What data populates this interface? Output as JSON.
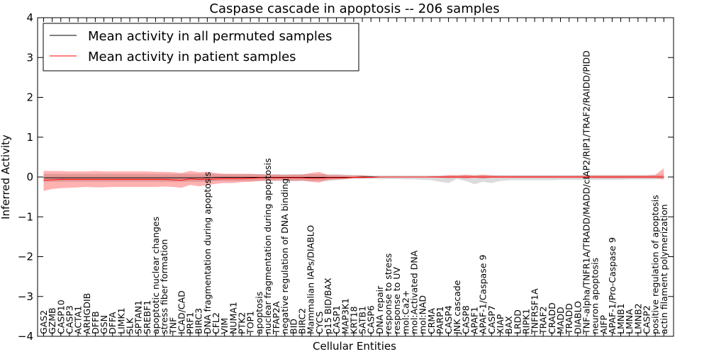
{
  "chart_data": {
    "type": "line",
    "title": "Caspase cascade in apoptosis -- 206 samples",
    "xlabel": "Cellular Entities",
    "ylabel": "Inferred Activity",
    "ylim": [
      -4,
      4
    ],
    "yticks": [
      "−4",
      "−3",
      "−2",
      "−1",
      "0",
      "1",
      "2",
      "3",
      "4"
    ],
    "legend_position": "top-left",
    "categories": [
      "GAS2",
      "GZMB",
      "CASP10",
      "CASP3",
      "ACTA1",
      "ARHGDIB",
      "DFFB",
      "GSN",
      "DFFA",
      "LIMK1",
      "SLK",
      "SPTAN1",
      "SREBF1",
      "apoptotic nuclear changes",
      "stress fiber formation",
      "TNF",
      "ICAD/CAD",
      "PRF1",
      "BIRC3",
      "DNA fragmentation during apoptosis",
      "CFL2",
      "VIM",
      "NUMA1",
      "PTK2",
      "TOP1",
      "apoptosis",
      "nuclear fragmentation during apoptosis",
      "TFAP2A",
      "negative regulation of DNA binding",
      "BID",
      "BIRC2",
      "Mammalian IAPs/DIABLO",
      "CYCS",
      "p15 BID/BAX",
      "CASP1",
      "MAP3K1",
      "KRT18",
      "SATB1",
      "CASP6",
      "DNA repair",
      "response to stress",
      "response to UV",
      "mol:Ca2+",
      "mol:Activated DNA",
      "mol:NAD",
      "CRMA",
      "PARP1",
      "CASP4",
      "JNK cascade",
      "CASP8",
      "APAF1",
      "APAF-1/Caspase 9",
      "CASP7",
      "XIAP",
      "BAX",
      "LRDD",
      "RIPK1",
      "TNFRSF1A",
      "TRAF2",
      "CRADD",
      "MADD",
      "TRADD",
      "DIABLO",
      "TNF-alpha/TNFR1A/TRADD/MADD/cIAP2/RIP1/TRAF2/RAIDD/PIDD",
      "neuron apoptosis",
      "AIFP",
      "APAF-1/Pro-Caspase 9",
      "LMNB1",
      "LMNA",
      "LMNB2",
      "CASP2",
      "positive regulation of apoptosis",
      "actin filament polymerization"
    ],
    "series": [
      {
        "name": "Mean activity in all permuted samples",
        "color": "#000000",
        "values": [
          -0.02,
          -0.02,
          -0.02,
          -0.02,
          -0.02,
          -0.02,
          -0.02,
          -0.02,
          -0.02,
          -0.02,
          -0.02,
          -0.02,
          -0.02,
          -0.02,
          -0.02,
          -0.02,
          -0.02,
          -0.02,
          -0.02,
          -0.02,
          -0.01,
          -0.01,
          -0.01,
          -0.01,
          -0.01,
          -0.01,
          -0.01,
          -0.01,
          -0.01,
          -0.01,
          -0.01,
          -0.01,
          -0.01,
          -0.01,
          -0.01,
          -0.01,
          -0.01,
          0,
          0,
          0,
          0,
          0,
          0,
          0,
          0,
          0,
          0,
          0,
          0,
          0,
          0,
          0,
          0,
          0,
          0,
          0,
          0,
          0,
          0,
          0,
          0,
          0,
          0,
          0,
          0,
          0,
          0,
          0,
          0,
          0,
          0,
          0,
          0
        ],
        "band_upper": [
          0.08,
          0.08,
          0.08,
          0.08,
          0.08,
          0.08,
          0.08,
          0.08,
          0.08,
          0.08,
          0.08,
          0.08,
          0.08,
          0.08,
          0.08,
          0.08,
          0.08,
          0.08,
          0.08,
          0.08,
          0.07,
          0.07,
          0.07,
          0.07,
          0.07,
          0.07,
          0.07,
          0.07,
          0.07,
          0.07,
          0.07,
          0.07,
          0.07,
          0.07,
          0.07,
          0.06,
          0.05,
          0.05,
          0.04,
          0.04,
          0.04,
          0.04,
          0.04,
          0.04,
          0.04,
          0.04,
          0.04,
          0.04,
          0.05,
          0.05,
          0.05,
          0.05,
          0.05,
          0.05,
          0.05,
          0.05,
          0.05,
          0.05,
          0.05,
          0.05,
          0.05,
          0.05,
          0.05,
          0.05,
          0.05,
          0.05,
          0.05,
          0.05,
          0.05,
          0.05,
          0.05,
          0.06,
          0.06
        ],
        "band_lower": [
          -0.12,
          -0.12,
          -0.12,
          -0.12,
          -0.12,
          -0.12,
          -0.12,
          -0.12,
          -0.12,
          -0.12,
          -0.12,
          -0.12,
          -0.12,
          -0.12,
          -0.12,
          -0.12,
          -0.12,
          -0.12,
          -0.12,
          -0.12,
          -0.1,
          -0.1,
          -0.1,
          -0.1,
          -0.1,
          -0.1,
          -0.1,
          -0.1,
          -0.1,
          -0.1,
          -0.1,
          -0.1,
          -0.1,
          -0.1,
          -0.08,
          -0.06,
          -0.05,
          -0.05,
          -0.05,
          -0.05,
          -0.05,
          -0.05,
          -0.06,
          -0.06,
          -0.07,
          -0.08,
          -0.12,
          -0.15,
          -0.05,
          -0.1,
          -0.18,
          -0.12,
          -0.15,
          -0.1,
          -0.08,
          -0.08,
          -0.08,
          -0.08,
          -0.08,
          -0.08,
          -0.07,
          -0.07,
          -0.07,
          -0.07,
          -0.07,
          -0.07,
          -0.07,
          -0.07,
          -0.06,
          -0.06,
          -0.06,
          -0.06,
          -0.06
        ]
      },
      {
        "name": "Mean activity in patient samples",
        "color": "#ff0000",
        "values": [
          -0.08,
          -0.07,
          -0.06,
          -0.06,
          -0.06,
          -0.06,
          -0.06,
          -0.06,
          -0.06,
          -0.06,
          -0.06,
          -0.06,
          -0.06,
          -0.06,
          -0.06,
          -0.07,
          -0.08,
          -0.05,
          -0.06,
          -0.06,
          -0.05,
          -0.04,
          -0.04,
          -0.04,
          -0.03,
          -0.02,
          -0.02,
          -0.02,
          -0.02,
          -0.02,
          -0.02,
          -0.03,
          -0.03,
          -0.02,
          -0.02,
          -0.02,
          -0.01,
          -0.01,
          -0.01,
          0,
          0,
          0,
          0,
          0,
          0,
          0,
          0,
          0,
          0,
          0,
          0,
          0,
          0,
          0,
          0,
          0,
          0,
          0,
          0,
          0,
          0,
          0,
          0,
          0,
          0,
          0,
          0,
          0,
          0,
          0,
          0,
          0,
          0
        ],
        "band_upper": [
          0.15,
          0.15,
          0.15,
          0.14,
          0.14,
          0.14,
          0.15,
          0.14,
          0.14,
          0.14,
          0.14,
          0.14,
          0.14,
          0.13,
          0.13,
          0.12,
          0.1,
          0.15,
          0.12,
          0.13,
          0.1,
          0.08,
          0.08,
          0.08,
          0.08,
          0.07,
          0.06,
          0.06,
          0.05,
          0.06,
          0.06,
          0.1,
          0.13,
          0.05,
          0.05,
          0.04,
          0.04,
          0.04,
          0.02,
          0.01,
          0,
          0,
          0,
          0,
          0,
          0.02,
          0.02,
          0.05,
          0.04,
          0.06,
          0.04,
          0.06,
          0.04,
          0.03,
          0.03,
          0.03,
          0.03,
          0.03,
          0.03,
          0.03,
          0.03,
          0.03,
          0.03,
          0.04,
          0.04,
          0.04,
          0.04,
          0.04,
          0.04,
          0.04,
          0.04,
          0.05,
          0.22
        ],
        "band_lower": [
          -0.35,
          -0.3,
          -0.28,
          -0.27,
          -0.26,
          -0.25,
          -0.26,
          -0.26,
          -0.25,
          -0.25,
          -0.25,
          -0.25,
          -0.25,
          -0.25,
          -0.24,
          -0.25,
          -0.27,
          -0.2,
          -0.23,
          -0.21,
          -0.17,
          -0.15,
          -0.15,
          -0.13,
          -0.12,
          -0.1,
          -0.09,
          -0.09,
          -0.08,
          -0.1,
          -0.09,
          -0.12,
          -0.14,
          -0.07,
          -0.06,
          -0.05,
          -0.03,
          -0.03,
          -0.02,
          -0.01,
          0,
          0,
          0,
          0,
          0,
          -0.01,
          -0.02,
          -0.03,
          -0.02,
          -0.04,
          -0.02,
          -0.04,
          -0.02,
          -0.02,
          -0.02,
          -0.02,
          -0.02,
          -0.02,
          -0.02,
          -0.02,
          -0.02,
          -0.02,
          -0.02,
          -0.02,
          -0.03,
          -0.03,
          -0.03,
          -0.03,
          -0.03,
          -0.03,
          -0.03,
          -0.03,
          -0.05
        ]
      }
    ]
  }
}
